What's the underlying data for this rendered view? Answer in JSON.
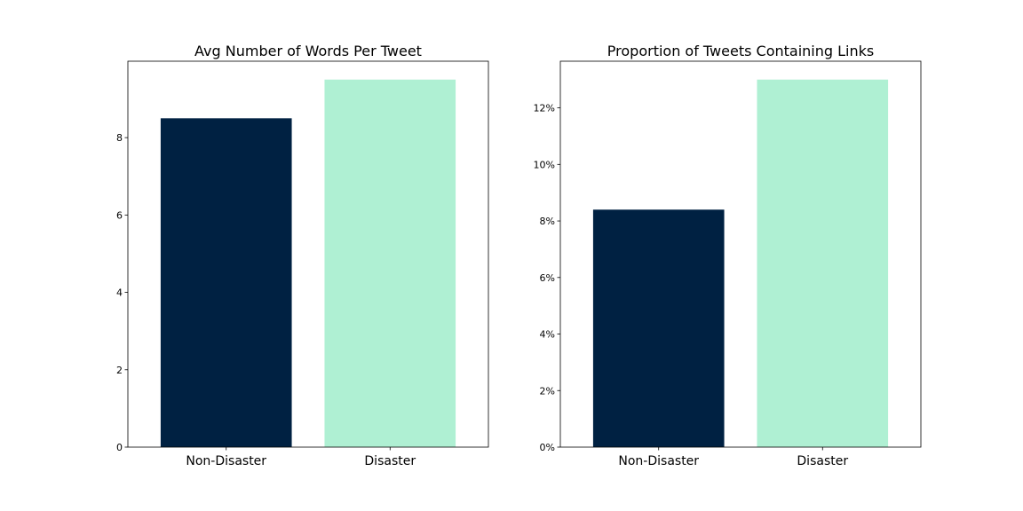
{
  "colors": {
    "non_disaster": "#002142",
    "disaster": "#aff0d3"
  },
  "chart_data": [
    {
      "type": "bar",
      "title": "Avg Number of Words Per Tweet",
      "categories": [
        "Non-Disaster",
        "Disaster"
      ],
      "values": [
        8.5,
        9.5
      ],
      "ylim": [
        0,
        9.975
      ],
      "yticks": [
        0,
        2,
        4,
        6,
        8
      ],
      "ytick_labels": [
        "0",
        "2",
        "4",
        "6",
        "8"
      ],
      "xlabel": "",
      "ylabel": "",
      "grid": false
    },
    {
      "type": "bar",
      "title": "Proportion of Tweets Containing Links",
      "categories": [
        "Non-Disaster",
        "Disaster"
      ],
      "values": [
        0.084,
        0.13
      ],
      "ylim": [
        0,
        0.1365
      ],
      "yticks": [
        0,
        0.02,
        0.04,
        0.06,
        0.08,
        0.1,
        0.12
      ],
      "ytick_labels": [
        "0%",
        "2%",
        "4%",
        "6%",
        "8%",
        "10%",
        "12%"
      ],
      "xlabel": "",
      "ylabel": "",
      "grid": false
    }
  ]
}
